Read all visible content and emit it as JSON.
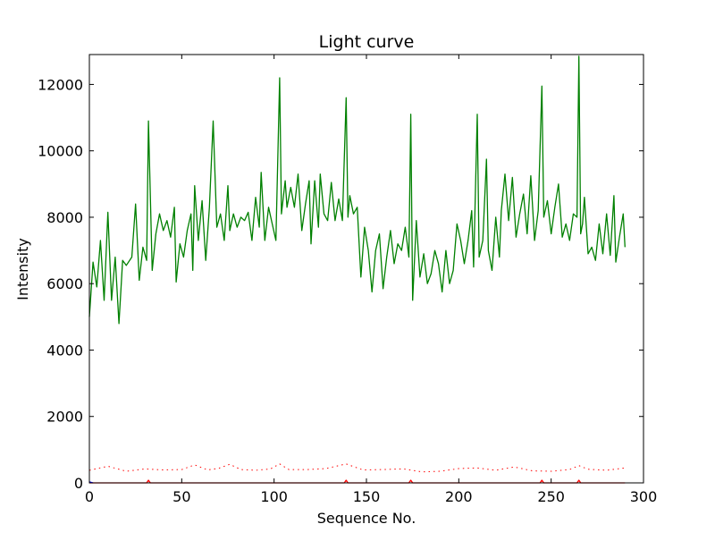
{
  "chart_data": {
    "type": "line",
    "title": "Light curve",
    "xlabel": "Sequence No.",
    "ylabel": "Intensity",
    "xlim": [
      0,
      300
    ],
    "ylim": [
      0,
      12900
    ],
    "xticks": [
      0,
      50,
      100,
      150,
      200,
      250,
      300
    ],
    "yticks": [
      0,
      2000,
      4000,
      6000,
      8000,
      10000,
      12000
    ],
    "grid": false,
    "legend": "none",
    "series": [
      {
        "color": "#008000",
        "style": "solid",
        "points": [
          [
            0,
            5000
          ],
          [
            2,
            6650
          ],
          [
            4,
            5900
          ],
          [
            6,
            7300
          ],
          [
            8,
            5500
          ],
          [
            10,
            8150
          ],
          [
            12,
            5500
          ],
          [
            14,
            6800
          ],
          [
            16,
            4800
          ],
          [
            18,
            6700
          ],
          [
            20,
            6550
          ],
          [
            23,
            6800
          ],
          [
            25,
            8400
          ],
          [
            27,
            6100
          ],
          [
            29,
            7100
          ],
          [
            31,
            6700
          ],
          [
            32,
            10900
          ],
          [
            34,
            6400
          ],
          [
            36,
            7500
          ],
          [
            38,
            8100
          ],
          [
            40,
            7600
          ],
          [
            42,
            7900
          ],
          [
            44,
            7400
          ],
          [
            46,
            8300
          ],
          [
            47,
            6050
          ],
          [
            49,
            7200
          ],
          [
            51,
            6800
          ],
          [
            53,
            7600
          ],
          [
            55,
            8100
          ],
          [
            56,
            6400
          ],
          [
            57,
            8950
          ],
          [
            59,
            7300
          ],
          [
            61,
            8500
          ],
          [
            63,
            6700
          ],
          [
            65,
            8300
          ],
          [
            67,
            10900
          ],
          [
            69,
            7700
          ],
          [
            71,
            8100
          ],
          [
            73,
            7300
          ],
          [
            75,
            8950
          ],
          [
            76,
            7600
          ],
          [
            78,
            8100
          ],
          [
            80,
            7700
          ],
          [
            82,
            8000
          ],
          [
            84,
            7900
          ],
          [
            86,
            8150
          ],
          [
            88,
            7300
          ],
          [
            90,
            8600
          ],
          [
            92,
            7700
          ],
          [
            93,
            9350
          ],
          [
            95,
            7300
          ],
          [
            97,
            8300
          ],
          [
            99,
            7800
          ],
          [
            101,
            7300
          ],
          [
            103,
            12200
          ],
          [
            104,
            8100
          ],
          [
            106,
            9100
          ],
          [
            107,
            8300
          ],
          [
            109,
            8900
          ],
          [
            111,
            8300
          ],
          [
            113,
            9300
          ],
          [
            115,
            7600
          ],
          [
            117,
            8400
          ],
          [
            119,
            9100
          ],
          [
            120,
            7200
          ],
          [
            122,
            9100
          ],
          [
            124,
            7700
          ],
          [
            125,
            9300
          ],
          [
            127,
            8100
          ],
          [
            129,
            7900
          ],
          [
            131,
            9050
          ],
          [
            133,
            7900
          ],
          [
            135,
            8550
          ],
          [
            137,
            7900
          ],
          [
            139,
            11600
          ],
          [
            140,
            8000
          ],
          [
            141,
            8650
          ],
          [
            143,
            8100
          ],
          [
            145,
            8300
          ],
          [
            147,
            6200
          ],
          [
            149,
            7700
          ],
          [
            151,
            7000
          ],
          [
            153,
            5750
          ],
          [
            155,
            7000
          ],
          [
            157,
            7500
          ],
          [
            159,
            5850
          ],
          [
            161,
            6800
          ],
          [
            163,
            7600
          ],
          [
            165,
            6600
          ],
          [
            167,
            7200
          ],
          [
            169,
            7000
          ],
          [
            171,
            7700
          ],
          [
            173,
            6800
          ],
          [
            174,
            11100
          ],
          [
            175,
            5500
          ],
          [
            177,
            7900
          ],
          [
            179,
            6200
          ],
          [
            181,
            6900
          ],
          [
            183,
            6000
          ],
          [
            185,
            6300
          ],
          [
            187,
            7000
          ],
          [
            189,
            6600
          ],
          [
            191,
            5750
          ],
          [
            193,
            7000
          ],
          [
            195,
            6000
          ],
          [
            197,
            6400
          ],
          [
            199,
            7800
          ],
          [
            201,
            7300
          ],
          [
            203,
            6600
          ],
          [
            205,
            7300
          ],
          [
            207,
            8200
          ],
          [
            208,
            6500
          ],
          [
            210,
            11100
          ],
          [
            211,
            6800
          ],
          [
            213,
            7300
          ],
          [
            215,
            9750
          ],
          [
            216,
            7000
          ],
          [
            218,
            6400
          ],
          [
            220,
            8000
          ],
          [
            222,
            6800
          ],
          [
            223,
            8200
          ],
          [
            225,
            9300
          ],
          [
            227,
            7900
          ],
          [
            229,
            9200
          ],
          [
            231,
            7400
          ],
          [
            233,
            8100
          ],
          [
            235,
            8700
          ],
          [
            237,
            7500
          ],
          [
            239,
            9250
          ],
          [
            241,
            7300
          ],
          [
            243,
            8200
          ],
          [
            245,
            11950
          ],
          [
            246,
            8000
          ],
          [
            248,
            8500
          ],
          [
            250,
            7500
          ],
          [
            252,
            8300
          ],
          [
            254,
            9000
          ],
          [
            256,
            7400
          ],
          [
            258,
            7800
          ],
          [
            260,
            7300
          ],
          [
            262,
            8100
          ],
          [
            264,
            8000
          ],
          [
            265,
            12850
          ],
          [
            266,
            7500
          ],
          [
            267,
            7800
          ],
          [
            268,
            8600
          ],
          [
            270,
            6900
          ],
          [
            272,
            7100
          ],
          [
            274,
            6700
          ],
          [
            276,
            7800
          ],
          [
            278,
            6900
          ],
          [
            280,
            8100
          ],
          [
            282,
            6850
          ],
          [
            284,
            8650
          ],
          [
            285,
            6650
          ],
          [
            287,
            7400
          ],
          [
            289,
            8100
          ],
          [
            290,
            7100
          ]
        ]
      },
      {
        "color": "#ff0000",
        "style": "dotted",
        "points": [
          [
            0,
            380
          ],
          [
            10,
            500
          ],
          [
            20,
            350
          ],
          [
            30,
            420
          ],
          [
            40,
            390
          ],
          [
            50,
            400
          ],
          [
            57,
            540
          ],
          [
            64,
            390
          ],
          [
            70,
            440
          ],
          [
            76,
            560
          ],
          [
            82,
            400
          ],
          [
            90,
            380
          ],
          [
            98,
            420
          ],
          [
            103,
            570
          ],
          [
            108,
            400
          ],
          [
            118,
            400
          ],
          [
            128,
            430
          ],
          [
            139,
            570
          ],
          [
            148,
            390
          ],
          [
            158,
            400
          ],
          [
            170,
            420
          ],
          [
            180,
            330
          ],
          [
            190,
            350
          ],
          [
            200,
            430
          ],
          [
            210,
            450
          ],
          [
            220,
            380
          ],
          [
            230,
            480
          ],
          [
            240,
            360
          ],
          [
            250,
            350
          ],
          [
            260,
            400
          ],
          [
            265,
            520
          ],
          [
            270,
            410
          ],
          [
            280,
            380
          ],
          [
            290,
            450
          ]
        ]
      },
      {
        "color": "#ff0000",
        "style": "solid",
        "points": [
          [
            0,
            0
          ],
          [
            31,
            0
          ],
          [
            32,
            80
          ],
          [
            33,
            0
          ],
          [
            138,
            0
          ],
          [
            139,
            80
          ],
          [
            140,
            0
          ],
          [
            173,
            0
          ],
          [
            174,
            80
          ],
          [
            175,
            0
          ],
          [
            244,
            0
          ],
          [
            245,
            80
          ],
          [
            246,
            0
          ],
          [
            264,
            0
          ],
          [
            265,
            80
          ],
          [
            266,
            0
          ],
          [
            290,
            0
          ]
        ]
      },
      {
        "color": "#0000ff",
        "style": "solid",
        "points": [
          [
            0,
            30
          ],
          [
            2,
            0
          ]
        ]
      }
    ]
  }
}
